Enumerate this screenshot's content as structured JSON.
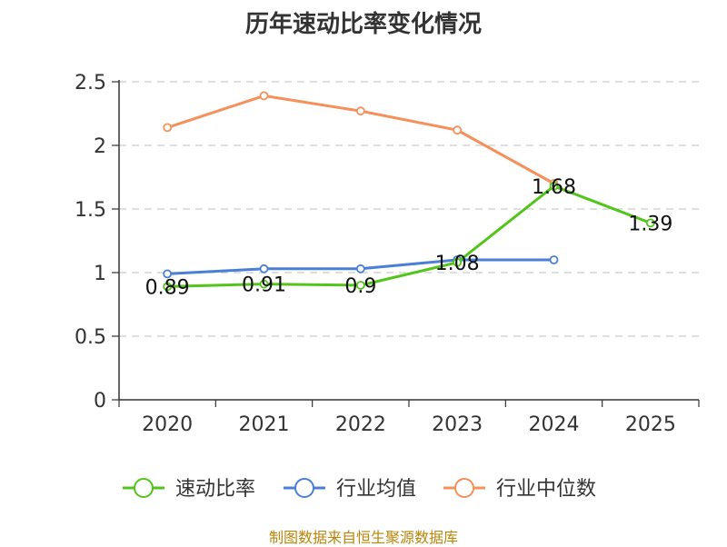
{
  "chart_data": {
    "type": "line",
    "title": "历年速动比率变化情况",
    "categories": [
      "2020",
      "2021",
      "2022",
      "2023",
      "2024",
      "2025"
    ],
    "yticks": [
      "0",
      "0.5",
      "1",
      "1.5",
      "2",
      "2.5"
    ],
    "ylim": [
      0,
      2.5
    ],
    "grid": true,
    "legend_position": "bottom",
    "series": [
      {
        "name": "速动比率",
        "color": "#52c41a",
        "values": [
          0.89,
          0.91,
          0.9,
          1.08,
          1.68,
          1.39
        ],
        "labels": [
          "0.89",
          "0.91",
          "0.9",
          "1.08",
          "1.68",
          "1.39"
        ]
      },
      {
        "name": "行业均值",
        "color": "#4a7fd8",
        "values": [
          0.99,
          1.03,
          1.03,
          1.1,
          1.1,
          null
        ]
      },
      {
        "name": "行业中位数",
        "color": "#f5905a",
        "values": [
          2.14,
          2.39,
          2.27,
          2.12,
          1.7,
          null
        ]
      }
    ]
  },
  "source_text": "制图数据来自恒生聚源数据库"
}
